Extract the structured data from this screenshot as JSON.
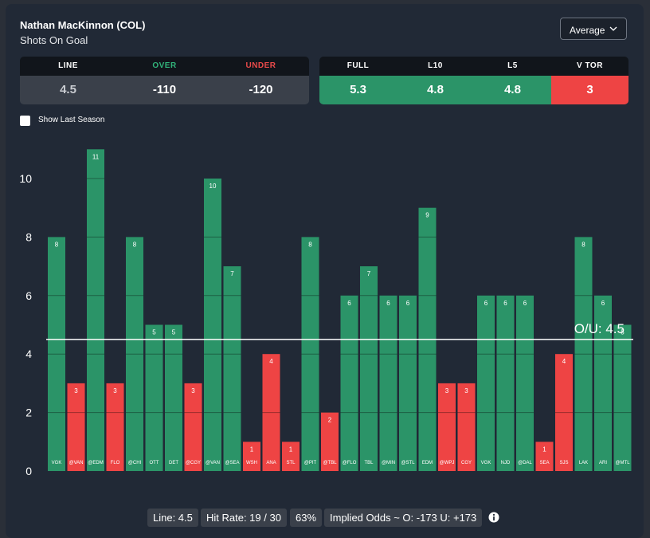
{
  "header": {
    "player": "Nathan MacKinnon (COL)",
    "stat": "Shots On Goal",
    "dropdown_value": "Average",
    "dropdown_icon": "chevron-down-icon"
  },
  "odds": {
    "headers": [
      "LINE",
      "OVER",
      "UNDER"
    ],
    "values": [
      "4.5",
      "-110",
      "-120"
    ]
  },
  "averages": {
    "headers": [
      "FULL",
      "L10",
      "L5",
      "V TOR"
    ],
    "values": [
      "5.3",
      "4.8",
      "4.8",
      "3"
    ]
  },
  "toggle": {
    "label": "Show Last Season",
    "checked": false
  },
  "colors": {
    "over": "#2b9468",
    "under": "#ee4444",
    "over_text": "#31b37a",
    "under_text": "#e94a4a"
  },
  "chart_data": {
    "type": "bar",
    "categories": [
      "VGK",
      "@VAN",
      "@EDM",
      "FLO",
      "@CHI",
      "OTT",
      "DET",
      "@CGY",
      "@VAN",
      "@SEA",
      "WSH",
      "ANA",
      "STL",
      "@PIT",
      "@TBL",
      "@FLO",
      "TBL",
      "@MIN",
      "@STL",
      "EDM",
      "@WPJ",
      "CGY",
      "VGK",
      "NJD",
      "@DAL",
      "SEA",
      "SJS",
      "LAK",
      "ARI",
      "@MTL"
    ],
    "values": [
      8,
      3,
      11,
      3,
      8,
      5,
      5,
      3,
      10,
      7,
      1,
      4,
      1,
      8,
      2,
      6,
      7,
      6,
      6,
      9,
      3,
      3,
      6,
      6,
      6,
      1,
      4,
      8,
      6,
      5
    ],
    "line": 4.5,
    "line_label": "O/U: 4.5",
    "y_ticks": [
      0,
      2,
      4,
      6,
      8,
      10
    ],
    "ylim": [
      0,
      11
    ]
  },
  "footer": {
    "line": "Line: 4.5",
    "hit_rate": "Hit Rate: 19 / 30",
    "pct": "63%",
    "implied": "Implied Odds ~ O: -173 U: +173",
    "info_icon": "info-icon"
  }
}
